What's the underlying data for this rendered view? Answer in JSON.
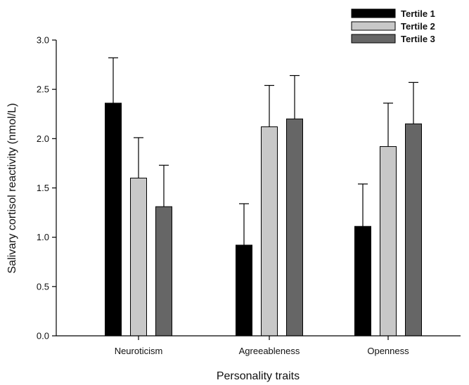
{
  "chart_data": {
    "type": "bar",
    "title": "",
    "xlabel": "Personality traits",
    "ylabel": "Salivary cortisol reactivity (nmol/L)",
    "ylim": [
      0,
      3.0
    ],
    "yticks": [
      0.0,
      0.5,
      1.0,
      1.5,
      2.0,
      2.5,
      3.0
    ],
    "ytick_labels": [
      "0.0",
      "0.5",
      "1.0",
      "1.5",
      "2.0",
      "2.5",
      "3.0"
    ],
    "categories": [
      "Neuroticism",
      "Agreeableness",
      "Openness"
    ],
    "series": [
      {
        "name": "Tertile 1",
        "color": "#000000",
        "values": [
          2.36,
          0.92,
          1.11
        ],
        "error_upper": [
          0.46,
          0.42,
          0.43
        ]
      },
      {
        "name": "Tertile 2",
        "color": "#c8c8c8",
        "values": [
          1.6,
          2.12,
          1.92
        ],
        "error_upper": [
          0.41,
          0.42,
          0.44
        ]
      },
      {
        "name": "Tertile 3",
        "color": "#666666",
        "values": [
          1.31,
          2.2,
          2.15
        ],
        "error_upper": [
          0.42,
          0.44,
          0.42
        ]
      }
    ],
    "legend": "top-right",
    "grid": false
  }
}
